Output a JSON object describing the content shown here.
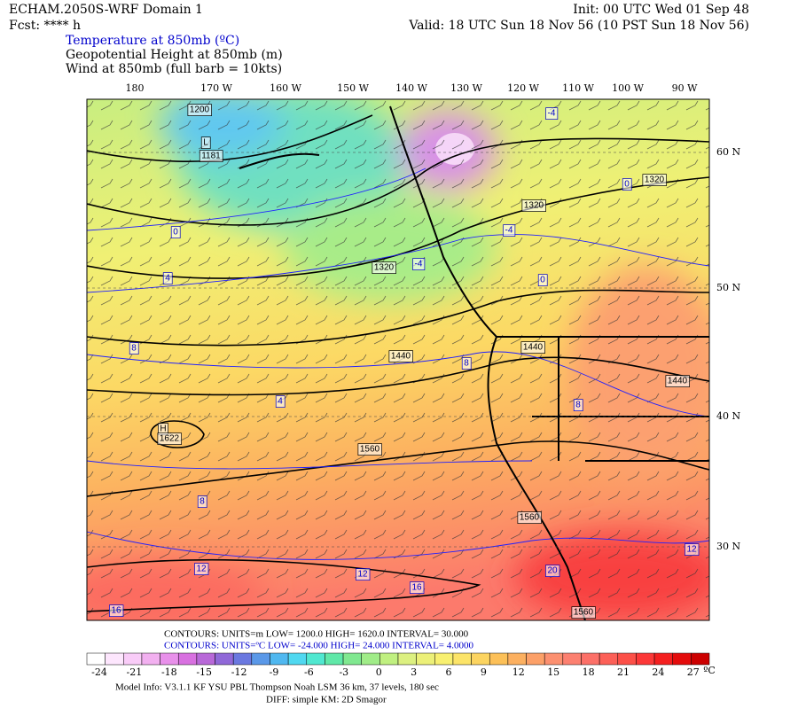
{
  "header": {
    "model": "ECHAM.2050S-WRF Domain 1",
    "init": "Init: 00 UTC Wed 01 Sep 48",
    "fcst": "Fcst: **** h",
    "valid": "Valid: 18 UTC Sun 18 Nov 56 (10 PST Sun 18 Nov 56)",
    "fields": [
      "Temperature at 850mb (ºC)",
      "Geopotential Height at 850mb (m)",
      "Wind at 850mb (full barb = 10kts)"
    ]
  },
  "longitudes": [
    "180",
    "170 W",
    "160 W",
    "150 W",
    "140 W",
    "130 W",
    "120 W",
    "110 W",
    "100 W",
    "90 W"
  ],
  "latitudes": [
    "60 N",
    "50 N",
    "40 N",
    "30 N"
  ],
  "contour_labels": {
    "height": [
      "1200",
      "L",
      "1181",
      "1320",
      "1320",
      "1320",
      "1440",
      "1440",
      "1440",
      "H",
      "1622",
      "1560",
      "1560",
      "1560"
    ],
    "temperature": [
      "-4",
      "0",
      "-4",
      "-4",
      "0",
      "0",
      "4",
      "8",
      "8",
      "4",
      "8",
      "8",
      "12",
      "12",
      "16",
      "20",
      "12",
      "16"
    ]
  },
  "footer": {
    "contours_height": "CONTOURS:  UNITS=m  LOW=    1200.0       HIGH=   1620.0       INTERVAL=     30.000",
    "contours_temp": "CONTOURS:  UNITS=ºC  LOW=  -24.000      HIGH=   24.000       INTERVAL=     4.0000",
    "model_info": "Model Info: V3.1.1    KF        YSU PBL   Thompson     Noah LSM   36 km,    37 levels,   180 sec",
    "diff": "DIFF: simple KM: 2D Smagor"
  },
  "colorbar": {
    "labels": [
      "-24",
      "-21",
      "-18",
      "-15",
      "-12",
      "-9",
      "-6",
      "-3",
      "0",
      "3",
      "6",
      "9",
      "12",
      "15",
      "18",
      "21",
      "24",
      "27"
    ],
    "unit": "ºC",
    "colors": [
      "#ffffff",
      "#fde6fd",
      "#f9ccf8",
      "#f2b0f0",
      "#e890ea",
      "#d870e0",
      "#b868d8",
      "#9068d8",
      "#6a78e0",
      "#5a98e8",
      "#50b8f0",
      "#50d8f0",
      "#50e8d0",
      "#60e8a8",
      "#80e890",
      "#a0ec88",
      "#c0f080",
      "#dcf080",
      "#ecf078",
      "#f8f070",
      "#fce468",
      "#fcd460",
      "#fcc058",
      "#fcb060",
      "#fca068",
      "#fc9070",
      "#fc8070",
      "#fc7068",
      "#fc6058",
      "#fc5048",
      "#fc3838",
      "#f42020",
      "#e40c0c",
      "#cc0000"
    ]
  }
}
